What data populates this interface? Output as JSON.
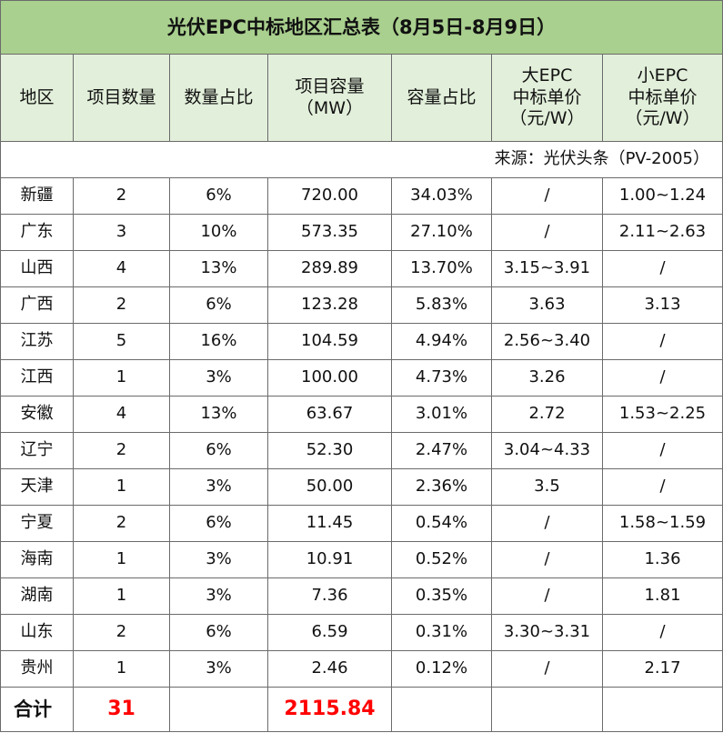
{
  "title": "光伏EPC中标地区汇总表（8月5日-8月9日）",
  "headers": {
    "region": "地区",
    "count": "项目数量",
    "count_ratio": "数量占比",
    "capacity_l1": "项目容量",
    "capacity_l2": "（MW）",
    "capacity_ratio": "容量占比",
    "big_l1": "大EPC",
    "big_l2": "中标单价",
    "big_l3": "（元/W）",
    "small_l1": "小EPC",
    "small_l2": "中标单价",
    "small_l3": "（元/W）"
  },
  "source": "来源：光伏头条（PV-2005）",
  "rows": [
    {
      "region": "新疆",
      "count": "2",
      "count_ratio": "6%",
      "capacity": "720.00",
      "capacity_ratio": "34.03%",
      "big": "/",
      "small": "1.00~1.24"
    },
    {
      "region": "广东",
      "count": "3",
      "count_ratio": "10%",
      "capacity": "573.35",
      "capacity_ratio": "27.10%",
      "big": "/",
      "small": "2.11~2.63"
    },
    {
      "region": "山西",
      "count": "4",
      "count_ratio": "13%",
      "capacity": "289.89",
      "capacity_ratio": "13.70%",
      "big": "3.15~3.91",
      "small": "/"
    },
    {
      "region": "广西",
      "count": "2",
      "count_ratio": "6%",
      "capacity": "123.28",
      "capacity_ratio": "5.83%",
      "big": "3.63",
      "small": "3.13"
    },
    {
      "region": "江苏",
      "count": "5",
      "count_ratio": "16%",
      "capacity": "104.59",
      "capacity_ratio": "4.94%",
      "big": "2.56~3.40",
      "small": "/"
    },
    {
      "region": "江西",
      "count": "1",
      "count_ratio": "3%",
      "capacity": "100.00",
      "capacity_ratio": "4.73%",
      "big": "3.26",
      "small": "/"
    },
    {
      "region": "安徽",
      "count": "4",
      "count_ratio": "13%",
      "capacity": "63.67",
      "capacity_ratio": "3.01%",
      "big": "2.72",
      "small": "1.53~2.25"
    },
    {
      "region": "辽宁",
      "count": "2",
      "count_ratio": "6%",
      "capacity": "52.30",
      "capacity_ratio": "2.47%",
      "big": "3.04~4.33",
      "small": "/"
    },
    {
      "region": "天津",
      "count": "1",
      "count_ratio": "3%",
      "capacity": "50.00",
      "capacity_ratio": "2.36%",
      "big": "3.5",
      "small": "/"
    },
    {
      "region": "宁夏",
      "count": "2",
      "count_ratio": "6%",
      "capacity": "11.45",
      "capacity_ratio": "0.54%",
      "big": "/",
      "small": "1.58~1.59"
    },
    {
      "region": "海南",
      "count": "1",
      "count_ratio": "3%",
      "capacity": "10.91",
      "capacity_ratio": "0.52%",
      "big": "/",
      "small": "1.36"
    },
    {
      "region": "湖南",
      "count": "1",
      "count_ratio": "3%",
      "capacity": "7.36",
      "capacity_ratio": "0.35%",
      "big": "/",
      "small": "1.81"
    },
    {
      "region": "山东",
      "count": "2",
      "count_ratio": "6%",
      "capacity": "6.59",
      "capacity_ratio": "0.31%",
      "big": "3.30~3.31",
      "small": "/"
    },
    {
      "region": "贵州",
      "count": "1",
      "count_ratio": "3%",
      "capacity": "2.46",
      "capacity_ratio": "0.12%",
      "big": "/",
      "small": "2.17"
    }
  ],
  "total": {
    "label": "合计",
    "count": "31",
    "capacity": "2115.84"
  },
  "colors": {
    "title_bg": "#a9d08e",
    "header_bg": "#e2efda",
    "total_value": "#ff0000"
  }
}
